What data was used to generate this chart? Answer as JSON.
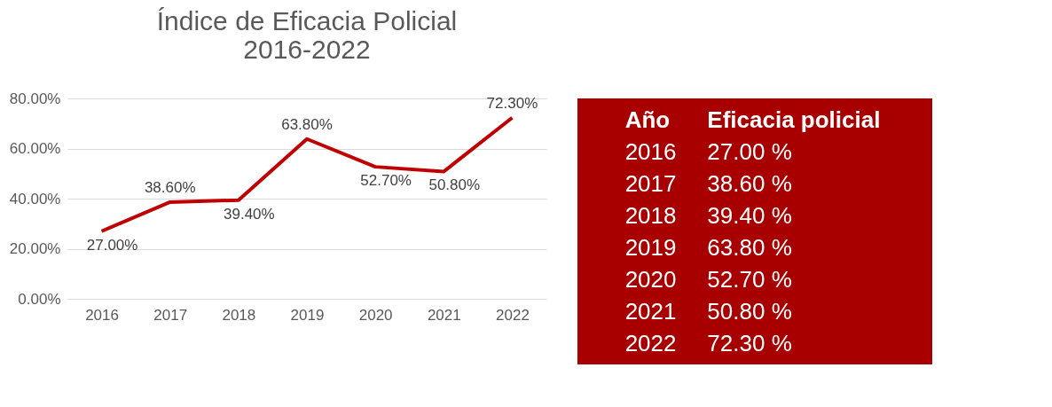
{
  "chart_data": {
    "type": "line",
    "title": "Índice de Eficacia Policial\n2016-2022",
    "categories": [
      "2016",
      "2017",
      "2018",
      "2019",
      "2020",
      "2021",
      "2022"
    ],
    "series": [
      {
        "color": "#c00000",
        "values": [
          27.0,
          38.6,
          39.4,
          63.8,
          52.7,
          50.8,
          72.3
        ],
        "value_labels": [
          "27.00%",
          "38.60%",
          "39.40%",
          "63.80%",
          "52.70%",
          "50.80%",
          "72.30%"
        ]
      }
    ],
    "ylim": [
      0,
      80
    ],
    "yticks": [
      {
        "value": 0,
        "label": "0.00%"
      },
      {
        "value": 20,
        "label": "20.00%"
      },
      {
        "value": 40,
        "label": "40.00%"
      },
      {
        "value": 60,
        "label": "60.00%"
      },
      {
        "value": 80,
        "label": "80.00%"
      }
    ],
    "grid": "y",
    "marker": "none",
    "line_style": "solid",
    "annotations": [
      "Año",
      "Eficacia policial",
      "2016",
      "27.00 %",
      "2017",
      "38.60 %",
      "2018",
      "39.40 %",
      "2019",
      "63.80 %",
      "2020",
      "52.70 %",
      "2021",
      "50.80 %",
      "2022",
      "72.30 %"
    ]
  }
}
